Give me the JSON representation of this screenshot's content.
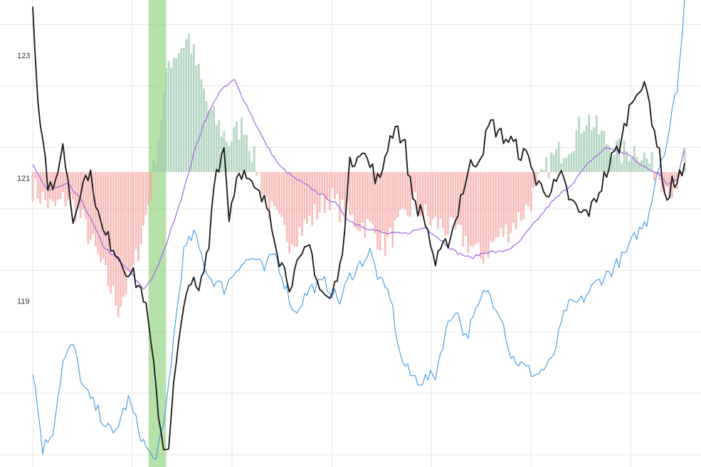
{
  "chart_data": {
    "type": "line",
    "title": "",
    "xlabel": "",
    "ylabel": "",
    "ylim": [
      116.3,
      123.9
    ],
    "yticks": [
      119,
      121,
      123
    ],
    "ytick_labels": [
      "119",
      "121",
      "123"
    ],
    "baseline": 121.1,
    "grid": true,
    "x_count": 260,
    "highlight_band": {
      "from": 46,
      "to": 53
    },
    "series": [
      {
        "role": "histogram",
        "color_positive": "#9fc9b0",
        "color_negative": "#f4a8a4",
        "keypoints": [
          [
            0,
            -0.25
          ],
          [
            8,
            -0.6
          ],
          [
            14,
            -0.4
          ],
          [
            20,
            -0.8
          ],
          [
            28,
            -1.6
          ],
          [
            34,
            -2.2
          ],
          [
            40,
            -1.6
          ],
          [
            44,
            -0.9
          ],
          [
            47,
            -0.3
          ],
          [
            50,
            0.6
          ],
          [
            54,
            1.8
          ],
          [
            62,
            2.2
          ],
          [
            70,
            1.0
          ],
          [
            78,
            0.5
          ],
          [
            84,
            0.8
          ],
          [
            88,
            0.2
          ],
          [
            94,
            -0.6
          ],
          [
            102,
            -1.1
          ],
          [
            110,
            -0.8
          ],
          [
            118,
            -0.4
          ],
          [
            122,
            -0.6
          ],
          [
            128,
            -0.8
          ],
          [
            134,
            -0.9
          ],
          [
            140,
            -1.2
          ],
          [
            145,
            -0.9
          ],
          [
            152,
            -0.5
          ],
          [
            158,
            -0.8
          ],
          [
            164,
            -0.9
          ],
          [
            172,
            -1.1
          ],
          [
            178,
            -1.4
          ],
          [
            184,
            -1.1
          ],
          [
            190,
            -0.9
          ],
          [
            196,
            -0.6
          ],
          [
            200,
            -0.3
          ],
          [
            206,
            0.2
          ],
          [
            214,
            0.5
          ],
          [
            220,
            0.9
          ],
          [
            228,
            0.5
          ],
          [
            234,
            0.3
          ],
          [
            240,
            0.4
          ],
          [
            246,
            0.1
          ],
          [
            252,
            -0.2
          ],
          [
            256,
            -0.4
          ],
          [
            259,
            0.2
          ]
        ]
      },
      {
        "role": "signal",
        "color": "#a56ee6",
        "keypoints": [
          [
            0,
            121.2
          ],
          [
            6,
            120.8
          ],
          [
            14,
            120.9
          ],
          [
            20,
            120.6
          ],
          [
            28,
            119.9
          ],
          [
            38,
            119.5
          ],
          [
            44,
            119.2
          ],
          [
            48,
            119.4
          ],
          [
            52,
            119.8
          ],
          [
            56,
            120.3
          ],
          [
            60,
            120.8
          ],
          [
            64,
            121.4
          ],
          [
            68,
            121.9
          ],
          [
            74,
            122.4
          ],
          [
            80,
            122.6
          ],
          [
            86,
            122.1
          ],
          [
            92,
            121.6
          ],
          [
            98,
            121.2
          ],
          [
            104,
            121.0
          ],
          [
            112,
            120.8
          ],
          [
            120,
            120.6
          ],
          [
            126,
            120.3
          ],
          [
            132,
            120.2
          ],
          [
            140,
            120.1
          ],
          [
            148,
            120.1
          ],
          [
            156,
            120.2
          ],
          [
            162,
            120.0
          ],
          [
            168,
            119.8
          ],
          [
            174,
            119.7
          ],
          [
            180,
            119.8
          ],
          [
            186,
            119.8
          ],
          [
            192,
            119.9
          ],
          [
            198,
            120.2
          ],
          [
            206,
            120.6
          ],
          [
            214,
            120.9
          ],
          [
            222,
            121.3
          ],
          [
            228,
            121.5
          ],
          [
            236,
            121.4
          ],
          [
            242,
            121.2
          ],
          [
            248,
            121.1
          ],
          [
            252,
            120.9
          ],
          [
            256,
            121.0
          ],
          [
            259,
            121.5
          ]
        ]
      },
      {
        "role": "price",
        "color": "#4a9fe6",
        "keypoints": [
          [
            0,
            117.9
          ],
          [
            4,
            116.6
          ],
          [
            8,
            116.9
          ],
          [
            12,
            118.0
          ],
          [
            16,
            118.3
          ],
          [
            20,
            117.6
          ],
          [
            26,
            117.2
          ],
          [
            32,
            116.8
          ],
          [
            38,
            117.4
          ],
          [
            44,
            116.7
          ],
          [
            48,
            116.4
          ],
          [
            52,
            116.9
          ],
          [
            56,
            118.4
          ],
          [
            60,
            119.8
          ],
          [
            64,
            120.1
          ],
          [
            70,
            119.4
          ],
          [
            76,
            119.2
          ],
          [
            82,
            119.6
          ],
          [
            88,
            119.7
          ],
          [
            92,
            119.5
          ],
          [
            96,
            119.8
          ],
          [
            100,
            119.3
          ],
          [
            104,
            118.8
          ],
          [
            110,
            119.2
          ],
          [
            116,
            119.3
          ],
          [
            122,
            119.0
          ],
          [
            126,
            119.4
          ],
          [
            130,
            119.6
          ],
          [
            134,
            119.8
          ],
          [
            138,
            119.3
          ],
          [
            142,
            119.1
          ],
          [
            146,
            118.1
          ],
          [
            150,
            117.8
          ],
          [
            154,
            117.7
          ],
          [
            160,
            117.8
          ],
          [
            164,
            118.5
          ],
          [
            168,
            118.9
          ],
          [
            172,
            118.4
          ],
          [
            176,
            118.8
          ],
          [
            180,
            119.2
          ],
          [
            186,
            118.8
          ],
          [
            190,
            118.1
          ],
          [
            196,
            117.9
          ],
          [
            200,
            117.8
          ],
          [
            206,
            118.0
          ],
          [
            212,
            118.9
          ],
          [
            218,
            119.0
          ],
          [
            224,
            119.3
          ],
          [
            230,
            119.5
          ],
          [
            236,
            119.8
          ],
          [
            240,
            120.1
          ],
          [
            244,
            120.3
          ],
          [
            248,
            121.1
          ],
          [
            252,
            121.6
          ],
          [
            256,
            122.5
          ],
          [
            258,
            123.3
          ],
          [
            259,
            123.9
          ]
        ]
      },
      {
        "role": "main",
        "color": "#1f1f1f",
        "keypoints": [
          [
            0,
            123.9
          ],
          [
            2,
            122.3
          ],
          [
            4,
            121.7
          ],
          [
            6,
            120.9
          ],
          [
            8,
            120.7
          ],
          [
            10,
            121.2
          ],
          [
            12,
            121.5
          ],
          [
            14,
            121.0
          ],
          [
            16,
            120.3
          ],
          [
            18,
            120.7
          ],
          [
            22,
            121.1
          ],
          [
            24,
            120.9
          ],
          [
            26,
            120.4
          ],
          [
            28,
            120.1
          ],
          [
            32,
            119.9
          ],
          [
            36,
            119.6
          ],
          [
            40,
            119.4
          ],
          [
            44,
            119.1
          ],
          [
            46,
            118.6
          ],
          [
            48,
            117.9
          ],
          [
            50,
            117.2
          ],
          [
            52,
            116.6
          ],
          [
            54,
            116.7
          ],
          [
            56,
            117.6
          ],
          [
            58,
            118.3
          ],
          [
            60,
            118.8
          ],
          [
            62,
            119.4
          ],
          [
            66,
            119.1
          ],
          [
            70,
            119.9
          ],
          [
            72,
            121.0
          ],
          [
            76,
            121.5
          ],
          [
            78,
            120.4
          ],
          [
            82,
            121.2
          ],
          [
            86,
            120.9
          ],
          [
            90,
            120.7
          ],
          [
            94,
            120.5
          ],
          [
            98,
            119.7
          ],
          [
            102,
            119.3
          ],
          [
            106,
            119.6
          ],
          [
            110,
            119.9
          ],
          [
            114,
            119.2
          ],
          [
            118,
            119.0
          ],
          [
            122,
            119.5
          ],
          [
            124,
            120.3
          ],
          [
            126,
            121.2
          ],
          [
            130,
            121.5
          ],
          [
            134,
            121.2
          ],
          [
            138,
            120.9
          ],
          [
            140,
            121.4
          ],
          [
            144,
            121.9
          ],
          [
            148,
            121.5
          ],
          [
            150,
            120.9
          ],
          [
            152,
            120.6
          ],
          [
            156,
            120.3
          ],
          [
            160,
            119.6
          ],
          [
            164,
            119.9
          ],
          [
            168,
            120.3
          ],
          [
            170,
            120.7
          ],
          [
            174,
            121.2
          ],
          [
            178,
            121.4
          ],
          [
            182,
            121.9
          ],
          [
            186,
            121.7
          ],
          [
            190,
            121.6
          ],
          [
            194,
            121.4
          ],
          [
            198,
            121.3
          ],
          [
            200,
            120.9
          ],
          [
            206,
            120.8
          ],
          [
            210,
            121.0
          ],
          [
            214,
            120.6
          ],
          [
            218,
            120.4
          ],
          [
            222,
            120.5
          ],
          [
            226,
            120.9
          ],
          [
            230,
            121.3
          ],
          [
            234,
            121.6
          ],
          [
            236,
            122.0
          ],
          [
            240,
            122.5
          ],
          [
            244,
            122.4
          ],
          [
            248,
            121.6
          ],
          [
            250,
            121.1
          ],
          [
            252,
            120.6
          ],
          [
            254,
            120.9
          ],
          [
            256,
            121.0
          ],
          [
            259,
            121.1
          ]
        ]
      }
    ]
  }
}
